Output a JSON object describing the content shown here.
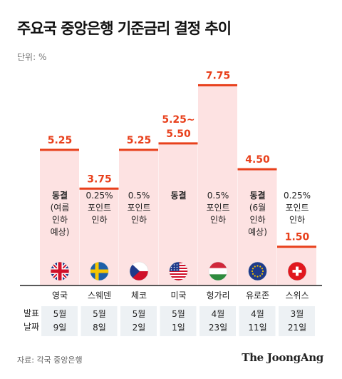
{
  "title": "주요국 중앙은행 기준금리 결정 추이",
  "unit": "단위: %",
  "source": "자료: 각국 중앙은행",
  "brand": "The JoongAng",
  "date_row_label": [
    "발표",
    "날짜"
  ],
  "colors": {
    "bar_fill": "#fde2e2",
    "bar_top": "#e8401c",
    "value_text": "#e8401c",
    "axis_line": "#222222",
    "date_fill": "#edf1f4"
  },
  "chart_data": {
    "type": "bar",
    "title": "주요국 중앙은행 기준금리 결정 추이",
    "ylabel": "단위: %",
    "ylim": [
      0,
      8.3
    ],
    "categories": [
      "영국",
      "스웨덴",
      "체코",
      "미국",
      "헝가리",
      "유로존",
      "스위스"
    ],
    "values": [
      5.25,
      3.75,
      5.25,
      5.5,
      7.75,
      4.5,
      1.5
    ],
    "value_labels": [
      "5.25",
      "3.75",
      "5.25",
      "5.25~\n5.50",
      "7.75",
      "4.50",
      "1.50"
    ],
    "range_lower": [
      null,
      null,
      null,
      5.25,
      null,
      null,
      null
    ],
    "decisions": [
      [
        "동결",
        "(여름",
        "인하",
        "예상)"
      ],
      [
        "0.25%",
        "포인트",
        "인하"
      ],
      [
        "0.5%",
        "포인트",
        "인하"
      ],
      [
        "동결"
      ],
      [
        "0.5%",
        "포인트",
        "인하"
      ],
      [
        "동결",
        "(6월",
        "인하",
        "예상)"
      ],
      [
        "0.25%",
        "포인트",
        "인하"
      ]
    ],
    "announcement_dates": [
      [
        "5월",
        "9일"
      ],
      [
        "5월",
        "8일"
      ],
      [
        "5월",
        "2일"
      ],
      [
        "5월",
        "1일"
      ],
      [
        "4월",
        "23일"
      ],
      [
        "4월",
        "11일"
      ],
      [
        "3월",
        "21일"
      ]
    ],
    "flags": [
      "uk-flag-icon",
      "sweden-flag-icon",
      "czech-flag-icon",
      "us-flag-icon",
      "hungary-flag-icon",
      "eu-flag-icon",
      "switzerland-flag-icon"
    ],
    "grid": false,
    "legend": "none"
  }
}
